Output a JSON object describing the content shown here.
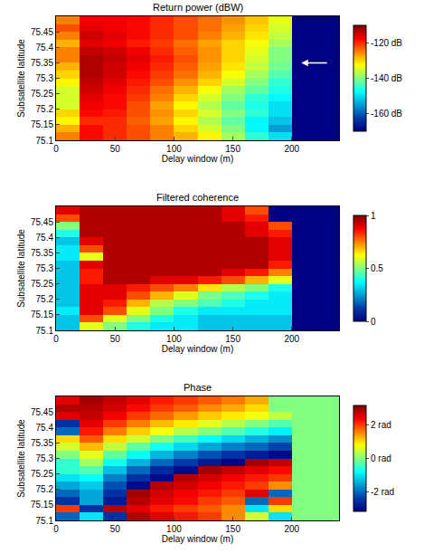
{
  "chart_data": [
    {
      "type": "heatmap",
      "title": "Return power (dBW)",
      "x_label": "Delay window (m)",
      "y_label": "Subsatellite latitude",
      "color": "jet",
      "x": [
        10,
        30,
        50,
        70,
        90,
        110,
        130,
        150,
        170,
        190,
        210,
        230
      ],
      "y": [
        75.1125,
        75.1375,
        75.1625,
        75.1875,
        75.2125,
        75.2375,
        75.2625,
        75.2875,
        75.3125,
        75.3375,
        75.3625,
        75.3875,
        75.4125,
        75.4375,
        75.4625,
        75.4875
      ],
      "z": [
        [
          -125,
          -118,
          -120,
          -122,
          -125,
          -128,
          -132,
          -138,
          -145,
          -150,
          -170,
          -170
        ],
        [
          -128,
          -118,
          -120,
          -122,
          -125,
          -130,
          -135,
          -140,
          -148,
          -155,
          -170,
          -170
        ],
        [
          -132,
          -120,
          -120,
          -123,
          -127,
          -132,
          -137,
          -142,
          -148,
          -152,
          -170,
          -170
        ],
        [
          -130,
          -118,
          -119,
          -122,
          -126,
          -130,
          -135,
          -140,
          -145,
          -150,
          -170,
          -170
        ],
        [
          -135,
          -117,
          -118,
          -122,
          -127,
          -132,
          -137,
          -142,
          -146,
          -150,
          -170,
          -170
        ],
        [
          -135,
          -116,
          -118,
          -121,
          -125,
          -130,
          -135,
          -140,
          -145,
          -148,
          -170,
          -170
        ],
        [
          -135,
          -115,
          -117,
          -120,
          -124,
          -128,
          -133,
          -138,
          -142,
          -146,
          -170,
          -170
        ],
        [
          -132,
          -114,
          -116,
          -119,
          -122,
          -126,
          -130,
          -135,
          -140,
          -145,
          -170,
          -170
        ],
        [
          -130,
          -113,
          -115,
          -118,
          -121,
          -124,
          -128,
          -133,
          -138,
          -143,
          -170,
          -170
        ],
        [
          -128,
          -113,
          -115,
          -117,
          -120,
          -123,
          -127,
          -131,
          -136,
          -141,
          -170,
          -170
        ],
        [
          -125,
          -113,
          -114,
          -116,
          -119,
          -122,
          -126,
          -130,
          -135,
          -140,
          -170,
          -170
        ],
        [
          -125,
          -114,
          -115,
          -117,
          -120,
          -123,
          -126,
          -130,
          -134,
          -140,
          -170,
          -170
        ],
        [
          -128,
          -116,
          -117,
          -119,
          -121,
          -124,
          -127,
          -130,
          -133,
          -138,
          -170,
          -170
        ],
        [
          -125,
          -115,
          -116,
          -118,
          -120,
          -122,
          -125,
          -128,
          -131,
          -136,
          -170,
          -170
        ],
        [
          -122,
          -116,
          -117,
          -118,
          -120,
          -122,
          -124,
          -127,
          -130,
          -135,
          -170,
          -170
        ],
        [
          -125,
          -117,
          -117,
          -118,
          -120,
          -122,
          -124,
          -126,
          -129,
          -134,
          -170,
          -170
        ]
      ],
      "xlim": [
        0,
        240
      ],
      "xticks": [
        0,
        50,
        100,
        150,
        200
      ],
      "ylim": [
        75.1,
        75.5
      ],
      "yticks": [
        75.1,
        75.15,
        75.2,
        75.25,
        75.3,
        75.35,
        75.4,
        75.45
      ],
      "colorbar": {
        "range": [
          -170,
          -110
        ],
        "ticks": [
          {
            "value": -160,
            "label": "-160 dB"
          },
          {
            "value": -140,
            "label": "-140 dB"
          },
          {
            "value": -120,
            "label": "-120 dB"
          }
        ]
      },
      "annotations": [
        {
          "x": 208,
          "y": 75.35
        }
      ]
    },
    {
      "type": "heatmap",
      "title": "Filtered coherence",
      "x_label": "Delay window (m)",
      "y_label": "Subsatellite latitude",
      "color": "jet",
      "x": [
        10,
        30,
        50,
        70,
        90,
        110,
        130,
        150,
        170,
        190,
        210,
        230
      ],
      "y": [
        75.1125,
        75.1375,
        75.1625,
        75.1875,
        75.2125,
        75.2375,
        75.2625,
        75.2875,
        75.3125,
        75.3375,
        75.3625,
        75.3875,
        75.4125,
        75.4375,
        75.4625,
        75.4875
      ],
      "z": [
        [
          0.3,
          0.6,
          0.5,
          0.4,
          0.35,
          0.35,
          0.3,
          0.3,
          0.3,
          0.3,
          0,
          0
        ],
        [
          0.3,
          0.8,
          0.6,
          0.5,
          0.4,
          0.35,
          0.3,
          0.3,
          0.3,
          0.3,
          0,
          0
        ],
        [
          0.35,
          0.9,
          0.8,
          0.6,
          0.5,
          0.4,
          0.35,
          0.35,
          0.35,
          0.35,
          0,
          0
        ],
        [
          0.3,
          0.9,
          0.85,
          0.7,
          0.55,
          0.5,
          0.45,
          0.4,
          0.35,
          0.35,
          0,
          0
        ],
        [
          0.3,
          0.9,
          0.9,
          0.8,
          0.7,
          0.6,
          0.5,
          0.45,
          0.4,
          0.35,
          0,
          0
        ],
        [
          0.3,
          0.9,
          0.9,
          0.85,
          0.8,
          0.75,
          0.65,
          0.55,
          0.5,
          0.4,
          0,
          0
        ],
        [
          0.3,
          0.85,
          0.95,
          0.95,
          0.9,
          0.9,
          0.85,
          0.8,
          0.7,
          0.6,
          0,
          0
        ],
        [
          0.3,
          0.85,
          0.95,
          0.95,
          0.95,
          0.95,
          0.95,
          0.9,
          0.85,
          0.75,
          0,
          0
        ],
        [
          0.3,
          0.9,
          0.95,
          0.95,
          0.95,
          0.95,
          0.95,
          0.95,
          0.95,
          0.85,
          0,
          0
        ],
        [
          0.35,
          0.6,
          0.95,
          0.95,
          0.95,
          0.95,
          0.95,
          0.95,
          0.95,
          0.9,
          0,
          0
        ],
        [
          0.35,
          0.8,
          0.95,
          0.95,
          0.95,
          0.95,
          0.95,
          0.95,
          0.95,
          0.9,
          0,
          0
        ],
        [
          0.3,
          0.9,
          0.95,
          0.95,
          0.95,
          0.95,
          0.95,
          0.95,
          0.95,
          0.9,
          0,
          0
        ],
        [
          0.4,
          0.95,
          0.95,
          0.95,
          0.95,
          0.95,
          0.95,
          0.95,
          0.9,
          0.85,
          0,
          0
        ],
        [
          0.5,
          0.95,
          0.95,
          0.95,
          0.95,
          0.95,
          0.95,
          0.95,
          0.9,
          0.8,
          0,
          0
        ],
        [
          0.8,
          0.95,
          0.95,
          0.95,
          0.95,
          0.95,
          0.95,
          0.9,
          0.85,
          0,
          0,
          0
        ],
        [
          0.9,
          0.95,
          0.95,
          0.95,
          0.95,
          0.95,
          0.95,
          0.9,
          0.8,
          0,
          0,
          0
        ]
      ],
      "xlim": [
        0,
        240
      ],
      "xticks": [
        0,
        50,
        100,
        150,
        200
      ],
      "ylim": [
        75.1,
        75.5
      ],
      "yticks": [
        75.1,
        75.15,
        75.2,
        75.25,
        75.3,
        75.35,
        75.4,
        75.45
      ],
      "colorbar": {
        "range": [
          0,
          1
        ],
        "ticks": [
          0,
          0.5,
          1
        ]
      }
    },
    {
      "type": "heatmap",
      "title": "Phase",
      "x_label": "Delay window (m)",
      "y_label": "Subsatellite latitude",
      "color": "jet",
      "x": [
        10,
        30,
        50,
        70,
        90,
        110,
        130,
        150,
        170,
        190,
        210,
        230
      ],
      "y": [
        75.1125,
        75.1375,
        75.1625,
        75.1875,
        75.2125,
        75.2375,
        75.2625,
        75.2875,
        75.3125,
        75.3375,
        75.3625,
        75.3875,
        75.4125,
        75.4375,
        75.4625,
        75.4875
      ],
      "z": [
        [
          -2,
          -1,
          -2.5,
          2.8,
          2.5,
          2.2,
          2.0,
          1.5,
          0.5,
          -1,
          0,
          0
        ],
        [
          2,
          -2.5,
          2.8,
          2.5,
          2.2,
          2.0,
          1.8,
          1.5,
          -1,
          1,
          0,
          0
        ],
        [
          -2.5,
          -1.5,
          -2.8,
          2.8,
          2.5,
          2.3,
          2.0,
          1.8,
          -2,
          2,
          0,
          0
        ],
        [
          -2,
          -1.5,
          -2.5,
          2.9,
          2.6,
          2.4,
          2.2,
          2.0,
          2.5,
          -2,
          0,
          0
        ],
        [
          -1.5,
          -1.2,
          -2.2,
          -3.0,
          2.8,
          2.6,
          2.4,
          2.2,
          2.0,
          1.5,
          0,
          0
        ],
        [
          -1,
          -0.8,
          -1.8,
          -2.5,
          -3.0,
          2.8,
          2.6,
          2.4,
          2.2,
          2.0,
          0,
          0
        ],
        [
          -0.5,
          -0.3,
          -1.3,
          -2.0,
          -2.6,
          -3.0,
          2.9,
          2.7,
          2.5,
          2.3,
          0,
          0
        ],
        [
          -0.5,
          0.2,
          -0.7,
          -1.4,
          -2.0,
          -2.4,
          -2.8,
          -3.1,
          2.9,
          2.7,
          0,
          0
        ],
        [
          0,
          0.6,
          -0.2,
          -0.8,
          -1.4,
          -1.8,
          -2.2,
          -2.5,
          -2.8,
          -3.0,
          0,
          0
        ],
        [
          0.5,
          1.2,
          0.4,
          -0.2,
          -0.7,
          -1.1,
          -1.5,
          -1.8,
          -2.0,
          -2.3,
          0,
          0
        ],
        [
          1,
          1.8,
          1.0,
          0.5,
          0,
          -0.4,
          -0.8,
          -1.1,
          -1.4,
          -1.7,
          0,
          0
        ],
        [
          -2,
          2.2,
          1.6,
          1.1,
          0.7,
          0.3,
          0,
          -0.3,
          -0.6,
          -0.9,
          0,
          0
        ],
        [
          -2.5,
          2.5,
          2.0,
          1.6,
          1.2,
          0.9,
          0.6,
          0.3,
          0,
          -0.3,
          0,
          0
        ],
        [
          2.5,
          2.7,
          2.4,
          2.0,
          1.7,
          1.4,
          1.1,
          0.9,
          0.7,
          0.4,
          0,
          0
        ],
        [
          2.8,
          2.8,
          2.6,
          2.3,
          2.0,
          1.8,
          1.5,
          1.3,
          1.0,
          0,
          0,
          0
        ],
        [
          2.5,
          2.9,
          2.7,
          2.5,
          2.2,
          2.0,
          1.8,
          1.6,
          1.3,
          0,
          0,
          0
        ]
      ],
      "xlim": [
        0,
        240
      ],
      "xticks": [
        0,
        50,
        100,
        150,
        200
      ],
      "ylim": [
        75.1,
        75.5
      ],
      "yticks": [
        75.1,
        75.15,
        75.2,
        75.25,
        75.3,
        75.35,
        75.4,
        75.45
      ],
      "colorbar": {
        "range": [
          -3.14,
          3.14
        ],
        "ticks": [
          {
            "value": -2,
            "label": "-2 rad"
          },
          {
            "value": 0,
            "label": "0 rad"
          },
          {
            "value": 2,
            "label": "2 rad"
          }
        ]
      }
    }
  ]
}
